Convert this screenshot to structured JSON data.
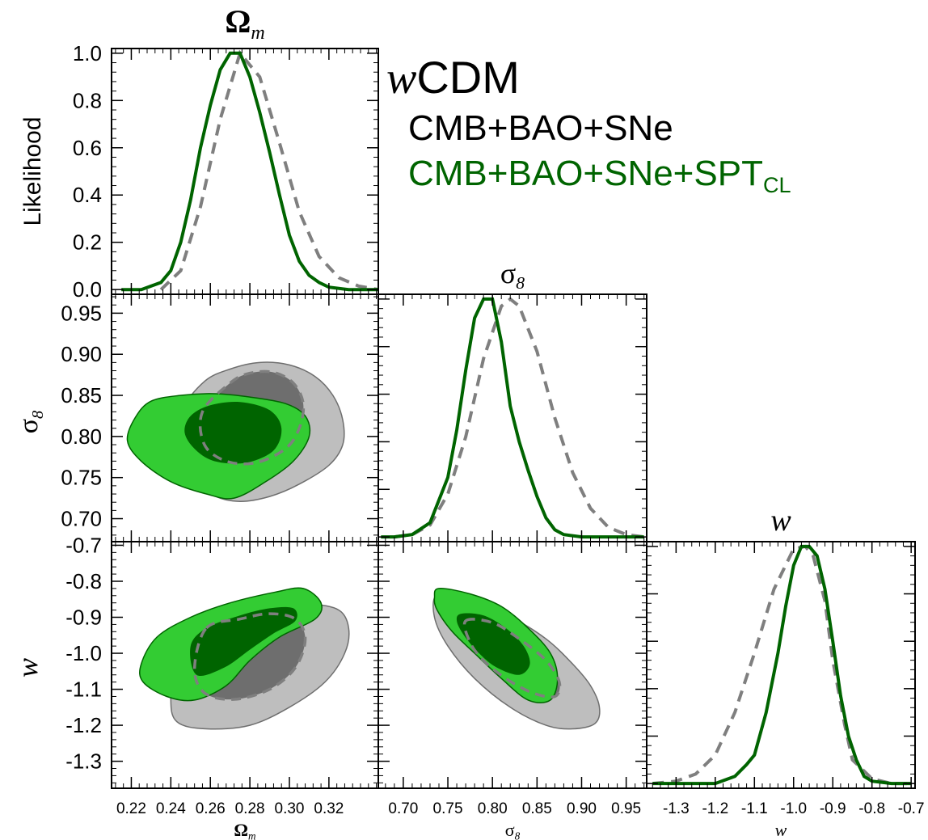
{
  "chart_data": {
    "type": "triangle-plot",
    "title_model": "wCDM",
    "colors": {
      "reference": "#7f7f7f",
      "reference_fill_outer": "#bebebe",
      "reference_fill_inner": "#6e6e6e",
      "main": "#006400",
      "main_fill_outer": "#33cc33",
      "main_fill_inner": "#006400"
    },
    "legend": {
      "model_prefix": "w",
      "model_suffix": "CDM",
      "entries": [
        {
          "label": "CMB+BAO+SNe",
          "color": "#7f7f7f"
        },
        {
          "label": "CMB+BAO+SNe+SPT",
          "subscript": "CL",
          "color": "#006400"
        }
      ]
    },
    "parameters": [
      {
        "symbol": "Ω",
        "subscript": "m",
        "range": [
          0.21,
          0.345
        ],
        "ticks": [
          "0.22",
          "0.24",
          "0.26",
          "0.28",
          "0.30",
          "0.32"
        ],
        "tick_values": [
          0.22,
          0.24,
          0.26,
          0.28,
          0.3,
          0.32
        ]
      },
      {
        "symbol": "σ",
        "subscript": "8",
        "range": [
          0.672,
          0.973
        ],
        "ticks": [
          "0.70",
          "0.75",
          "0.80",
          "0.85",
          "0.90",
          "0.95"
        ],
        "tick_values": [
          0.7,
          0.75,
          0.8,
          0.85,
          0.9,
          0.95
        ]
      },
      {
        "symbol": "w",
        "subscript": "",
        "range": [
          -1.375,
          -0.69
        ],
        "ticks": [
          "-1.3",
          "-1.2",
          "-1.1",
          "-1.0",
          "-0.9",
          "-0.8",
          "-0.7"
        ],
        "tick_values": [
          -1.3,
          -1.2,
          -1.1,
          -1.0,
          -0.9,
          -0.8,
          -0.7
        ]
      }
    ],
    "likelihood_axis": {
      "label": "Likelihood",
      "ticks": [
        "0.0",
        "0.2",
        "0.4",
        "0.6",
        "0.8",
        "1.0"
      ],
      "tick_values": [
        0,
        0.2,
        0.4,
        0.6,
        0.8,
        1.0
      ],
      "range": [
        -0.02,
        1.02
      ]
    },
    "marginals": [
      {
        "parameter": "Ω_m",
        "reference": {
          "x": [
            0.235,
            0.245,
            0.255,
            0.265,
            0.275,
            0.285,
            0.295,
            0.305,
            0.315,
            0.325,
            0.335,
            0.345
          ],
          "y": [
            0.0,
            0.08,
            0.35,
            0.72,
            1.0,
            0.9,
            0.62,
            0.33,
            0.14,
            0.05,
            0.015,
            0.0
          ]
        },
        "main": {
          "x": [
            0.215,
            0.225,
            0.235,
            0.24,
            0.245,
            0.25,
            0.255,
            0.26,
            0.265,
            0.27,
            0.275,
            0.28,
            0.285,
            0.29,
            0.295,
            0.3,
            0.305,
            0.31,
            0.315,
            0.32,
            0.33,
            0.345
          ],
          "y": [
            0.0,
            0.0,
            0.03,
            0.08,
            0.2,
            0.38,
            0.6,
            0.78,
            0.93,
            1.0,
            1.0,
            0.9,
            0.75,
            0.58,
            0.4,
            0.23,
            0.12,
            0.06,
            0.03,
            0.01,
            0.0,
            0.0
          ]
        }
      },
      {
        "parameter": "σ_8",
        "reference": {
          "x": [
            0.69,
            0.71,
            0.73,
            0.75,
            0.77,
            0.79,
            0.81,
            0.82,
            0.83,
            0.85,
            0.87,
            0.89,
            0.91,
            0.93,
            0.95,
            0.97
          ],
          "y": [
            0.0,
            0.01,
            0.05,
            0.18,
            0.42,
            0.75,
            0.97,
            1.0,
            0.97,
            0.78,
            0.5,
            0.27,
            0.12,
            0.04,
            0.01,
            0.0
          ]
        },
        "main": {
          "x": [
            0.675,
            0.69,
            0.71,
            0.73,
            0.75,
            0.76,
            0.77,
            0.78,
            0.79,
            0.8,
            0.81,
            0.82,
            0.83,
            0.84,
            0.85,
            0.86,
            0.87,
            0.88,
            0.9,
            0.92,
            0.95,
            0.97
          ],
          "y": [
            0.0,
            0.0,
            0.01,
            0.06,
            0.25,
            0.45,
            0.7,
            0.92,
            1.0,
            1.0,
            0.82,
            0.55,
            0.4,
            0.28,
            0.17,
            0.08,
            0.03,
            0.01,
            0.0,
            0.0,
            0.0,
            0.0
          ]
        }
      },
      {
        "parameter": "w",
        "reference": {
          "x": [
            -1.36,
            -1.3,
            -1.25,
            -1.2,
            -1.15,
            -1.1,
            -1.05,
            -1.0,
            -0.97,
            -0.95,
            -0.92,
            -0.9,
            -0.87,
            -0.85,
            -0.8,
            -0.75,
            -0.7
          ],
          "y": [
            0.0,
            0.01,
            0.04,
            0.12,
            0.3,
            0.55,
            0.82,
            0.99,
            1.0,
            0.96,
            0.77,
            0.52,
            0.25,
            0.1,
            0.02,
            0.0,
            0.0
          ]
        },
        "main": {
          "x": [
            -1.36,
            -1.3,
            -1.2,
            -1.15,
            -1.12,
            -1.1,
            -1.07,
            -1.04,
            -1.02,
            -1.0,
            -0.98,
            -0.96,
            -0.94,
            -0.92,
            -0.9,
            -0.88,
            -0.86,
            -0.84,
            -0.82,
            -0.8,
            -0.75,
            -0.7
          ],
          "y": [
            0.0,
            0.0,
            0.0,
            0.03,
            0.08,
            0.12,
            0.3,
            0.55,
            0.75,
            0.92,
            1.0,
            1.0,
            0.96,
            0.82,
            0.6,
            0.37,
            0.2,
            0.1,
            0.03,
            0.01,
            0.0,
            0.0
          ]
        }
      }
    ],
    "contours": [
      {
        "x_param": "Ω_m",
        "y_param": "σ_8",
        "reference_95": [
          [
            0.257,
            0.867
          ],
          [
            0.27,
            0.882
          ],
          [
            0.285,
            0.89
          ],
          [
            0.3,
            0.887
          ],
          [
            0.313,
            0.873
          ],
          [
            0.322,
            0.85
          ],
          [
            0.327,
            0.82
          ],
          [
            0.327,
            0.79
          ],
          [
            0.32,
            0.765
          ],
          [
            0.305,
            0.742
          ],
          [
            0.29,
            0.727
          ],
          [
            0.275,
            0.721
          ],
          [
            0.262,
            0.728
          ],
          [
            0.25,
            0.752
          ],
          [
            0.244,
            0.79
          ],
          [
            0.245,
            0.83
          ]
        ],
        "reference_68": [
          [
            0.27,
            0.865
          ],
          [
            0.28,
            0.877
          ],
          [
            0.292,
            0.878
          ],
          [
            0.302,
            0.865
          ],
          [
            0.307,
            0.84
          ],
          [
            0.305,
            0.81
          ],
          [
            0.298,
            0.785
          ],
          [
            0.283,
            0.768
          ],
          [
            0.268,
            0.77
          ],
          [
            0.257,
            0.79
          ],
          [
            0.256,
            0.83
          ]
        ],
        "main_95": [
          [
            0.222,
            0.823
          ],
          [
            0.23,
            0.843
          ],
          [
            0.245,
            0.85
          ],
          [
            0.262,
            0.852
          ],
          [
            0.28,
            0.848
          ],
          [
            0.298,
            0.84
          ],
          [
            0.308,
            0.825
          ],
          [
            0.31,
            0.8
          ],
          [
            0.302,
            0.77
          ],
          [
            0.288,
            0.745
          ],
          [
            0.272,
            0.725
          ],
          [
            0.258,
            0.73
          ],
          [
            0.24,
            0.745
          ],
          [
            0.225,
            0.77
          ],
          [
            0.218,
            0.795
          ]
        ],
        "main_68": [
          [
            0.25,
            0.825
          ],
          [
            0.26,
            0.838
          ],
          [
            0.275,
            0.842
          ],
          [
            0.29,
            0.832
          ],
          [
            0.296,
            0.81
          ],
          [
            0.292,
            0.783
          ],
          [
            0.278,
            0.768
          ],
          [
            0.262,
            0.77
          ],
          [
            0.252,
            0.785
          ],
          [
            0.247,
            0.805
          ]
        ]
      },
      {
        "x_param": "Ω_m",
        "y_param": "w",
        "reference_95": [
          [
            0.252,
            -0.905
          ],
          [
            0.27,
            -0.88
          ],
          [
            0.29,
            -0.86
          ],
          [
            0.31,
            -0.862
          ],
          [
            0.325,
            -0.88
          ],
          [
            0.33,
            -0.93
          ],
          [
            0.328,
            -1.0
          ],
          [
            0.318,
            -1.08
          ],
          [
            0.3,
            -1.15
          ],
          [
            0.28,
            -1.2
          ],
          [
            0.258,
            -1.21
          ],
          [
            0.243,
            -1.19
          ],
          [
            0.24,
            -1.12
          ],
          [
            0.243,
            -1.0
          ]
        ],
        "reference_68": [
          [
            0.258,
            -0.93
          ],
          [
            0.275,
            -0.905
          ],
          [
            0.29,
            -0.89
          ],
          [
            0.303,
            -0.905
          ],
          [
            0.308,
            -0.96
          ],
          [
            0.303,
            -1.04
          ],
          [
            0.29,
            -1.1
          ],
          [
            0.272,
            -1.128
          ],
          [
            0.257,
            -1.11
          ],
          [
            0.252,
            -1.04
          ]
        ],
        "main_95": [
          [
            0.225,
            -1.03
          ],
          [
            0.233,
            -0.955
          ],
          [
            0.25,
            -0.9
          ],
          [
            0.27,
            -0.86
          ],
          [
            0.293,
            -0.83
          ],
          [
            0.307,
            -0.82
          ],
          [
            0.316,
            -0.86
          ],
          [
            0.313,
            -0.905
          ],
          [
            0.295,
            -0.955
          ],
          [
            0.28,
            -1.02
          ],
          [
            0.268,
            -1.09
          ],
          [
            0.252,
            -1.13
          ],
          [
            0.238,
            -1.12
          ],
          [
            0.226,
            -1.08
          ]
        ],
        "main_68": [
          [
            0.25,
            -0.98
          ],
          [
            0.258,
            -0.93
          ],
          [
            0.275,
            -0.895
          ],
          [
            0.29,
            -0.875
          ],
          [
            0.302,
            -0.875
          ],
          [
            0.303,
            -0.91
          ],
          [
            0.292,
            -0.945
          ],
          [
            0.28,
            -0.99
          ],
          [
            0.267,
            -1.04
          ],
          [
            0.253,
            -1.06
          ]
        ]
      },
      {
        "x_param": "σ_8",
        "y_param": "w",
        "reference_95": [
          [
            0.738,
            -0.838
          ],
          [
            0.77,
            -0.86
          ],
          [
            0.82,
            -0.9
          ],
          [
            0.86,
            -0.96
          ],
          [
            0.89,
            -1.03
          ],
          [
            0.91,
            -1.09
          ],
          [
            0.92,
            -1.15
          ],
          [
            0.915,
            -1.195
          ],
          [
            0.89,
            -1.21
          ],
          [
            0.86,
            -1.2
          ],
          [
            0.82,
            -1.15
          ],
          [
            0.78,
            -1.07
          ],
          [
            0.75,
            -0.98
          ],
          [
            0.735,
            -0.9
          ]
        ],
        "reference_68": [
          [
            0.77,
            -0.91
          ],
          [
            0.8,
            -0.915
          ],
          [
            0.83,
            -0.96
          ],
          [
            0.86,
            -1.02
          ],
          [
            0.875,
            -1.08
          ],
          [
            0.87,
            -1.12
          ],
          [
            0.845,
            -1.11
          ],
          [
            0.815,
            -1.07
          ],
          [
            0.79,
            -1.02
          ],
          [
            0.775,
            -0.97
          ]
        ],
        "main_95": [
          [
            0.74,
            -0.82
          ],
          [
            0.775,
            -0.835
          ],
          [
            0.81,
            -0.87
          ],
          [
            0.84,
            -0.93
          ],
          [
            0.865,
            -1.0
          ],
          [
            0.873,
            -1.07
          ],
          [
            0.865,
            -1.13
          ],
          [
            0.84,
            -1.13
          ],
          [
            0.81,
            -1.07
          ],
          [
            0.78,
            -1.0
          ],
          [
            0.755,
            -0.94
          ],
          [
            0.738,
            -0.88
          ],
          [
            0.735,
            -0.845
          ]
        ],
        "main_68": [
          [
            0.765,
            -0.89
          ],
          [
            0.79,
            -0.895
          ],
          [
            0.815,
            -0.93
          ],
          [
            0.835,
            -0.98
          ],
          [
            0.842,
            -1.03
          ],
          [
            0.83,
            -1.06
          ],
          [
            0.805,
            -1.04
          ],
          [
            0.785,
            -1.0
          ],
          [
            0.768,
            -0.95
          ],
          [
            0.76,
            -0.91
          ]
        ]
      }
    ]
  }
}
